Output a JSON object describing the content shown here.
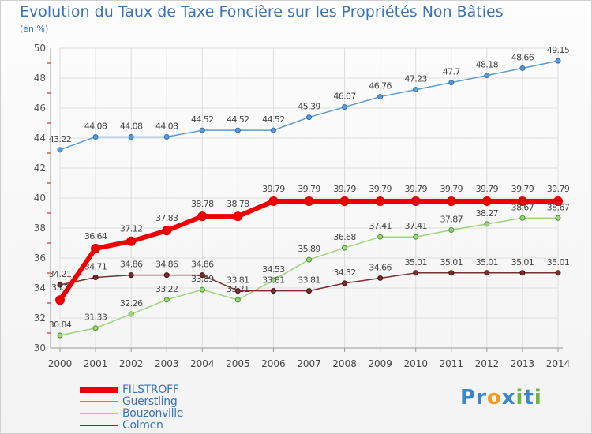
{
  "title": "Evolution du Taux de Taxe Foncière sur les Propriétés Non Bâties",
  "subtitle": "(en %)",
  "logo": {
    "text": "Proxiti",
    "letters": [
      {
        "ch": "P",
        "color": "#3a86c8"
      },
      {
        "ch": "r",
        "color": "#3a86c8"
      },
      {
        "ch": "o",
        "color": "#f39a21"
      },
      {
        "ch": "x",
        "color": "#3a86c8"
      },
      {
        "ch": "i",
        "color": "#6cb33f"
      },
      {
        "ch": "t",
        "color": "#3a86c8"
      },
      {
        "ch": "i",
        "color": "#6cb33f"
      }
    ]
  },
  "chart_data": {
    "type": "line",
    "title": "Evolution du Taux de Taxe Foncière sur les Propriétés Non Bâties",
    "ylabel": "(en %)",
    "xlabel": "",
    "x": [
      "2000",
      "2001",
      "2002",
      "2003",
      "2004",
      "2005",
      "2006",
      "2007",
      "2008",
      "2009",
      "2010",
      "2011",
      "2012",
      "2013",
      "2014"
    ],
    "ylim": [
      30,
      50
    ],
    "yticks": [
      30,
      32,
      34,
      36,
      38,
      40,
      42,
      44,
      46,
      48,
      50
    ],
    "grid": true,
    "legend_position": "bottom-left",
    "series": [
      {
        "name": "FILSTROFF",
        "color": "#ee0000",
        "values": [
          33.2,
          36.64,
          37.12,
          37.83,
          38.78,
          38.78,
          39.79,
          39.79,
          39.79,
          39.79,
          39.79,
          39.79,
          39.79,
          39.79,
          39.79
        ],
        "labels": [
          "33.2",
          "36.64",
          "37.12",
          "37.83",
          "38.78",
          "38.78",
          "39.79",
          "39.79",
          "39.79",
          "39.79",
          "39.79",
          "39.79",
          "39.79",
          "39.79",
          "39.79"
        ]
      },
      {
        "name": "Guerstling",
        "color": "#5b9bd5",
        "values": [
          43.22,
          44.08,
          44.08,
          44.08,
          44.52,
          44.52,
          44.52,
          45.39,
          46.07,
          46.76,
          47.23,
          47.7,
          48.18,
          48.66,
          49.15
        ],
        "labels": [
          "43.22",
          "44.08",
          "44.08",
          "44.08",
          "44.52",
          "44.52",
          "44.52",
          "45.39",
          "46.07",
          "46.76",
          "47.23",
          "47.7",
          "48.18",
          "48.66",
          "49.15"
        ]
      },
      {
        "name": "Bouzonville",
        "color": "#9cd67a",
        "values": [
          30.84,
          31.33,
          32.26,
          33.22,
          33.89,
          33.21,
          34.53,
          35.89,
          36.68,
          37.41,
          37.41,
          37.87,
          38.27,
          38.67,
          38.67
        ],
        "labels": [
          "30.84",
          "31.33",
          "32.26",
          "33.22",
          "33.89",
          "33.21",
          "34.53",
          "35.89",
          "36.68",
          "37.41",
          "37.41",
          "37.87",
          "38.27",
          "38.67",
          "38.67"
        ]
      },
      {
        "name": "Colmen",
        "color": "#7b2e2e",
        "values": [
          34.21,
          34.71,
          34.86,
          34.86,
          34.86,
          33.81,
          33.81,
          33.81,
          34.32,
          34.66,
          35.01,
          35.01,
          35.01,
          35.01,
          35.01
        ],
        "labels": [
          "34.21",
          "34.71",
          "34.86",
          "34.86",
          "34.86",
          "33.81",
          "33.81",
          "33.81",
          "34.32",
          "34.66",
          "35.01",
          "35.01",
          "35.01",
          "35.01",
          "35.01"
        ]
      }
    ]
  }
}
